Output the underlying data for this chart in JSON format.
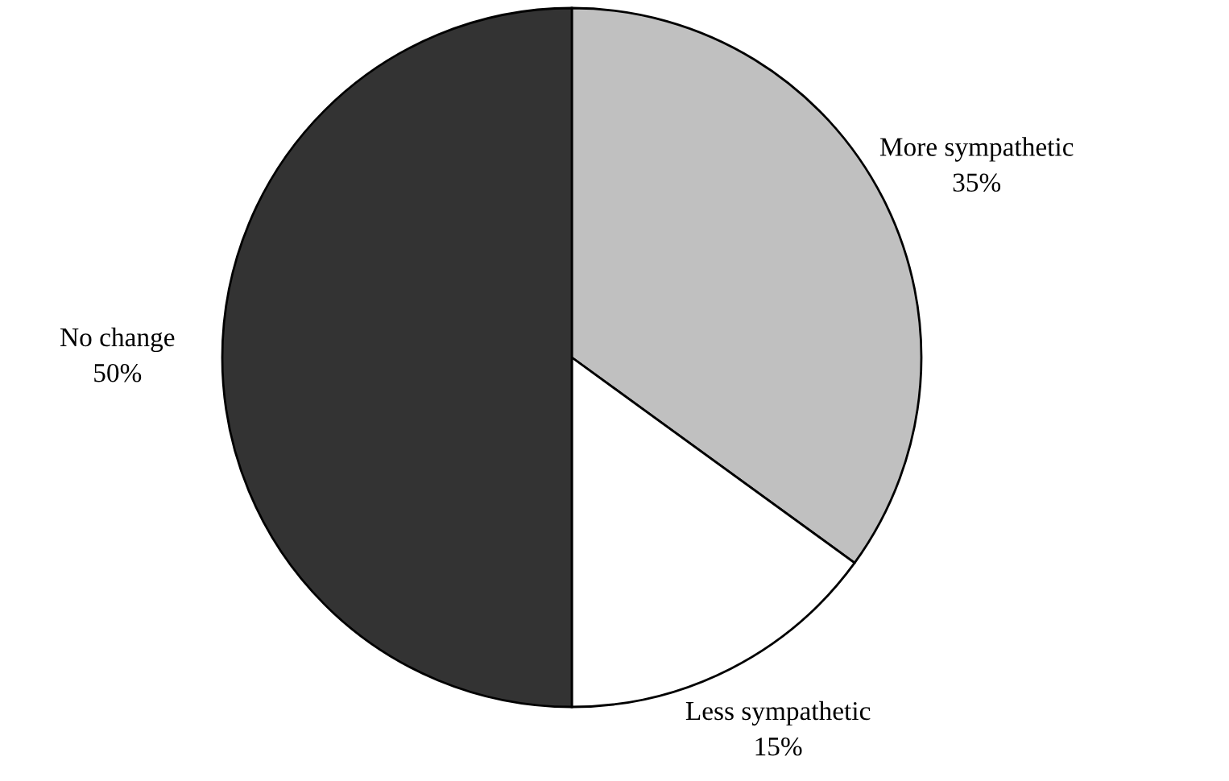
{
  "chart_data": {
    "type": "pie",
    "categories": [
      "More sympathetic",
      "Less sympathetic",
      "No change"
    ],
    "values": [
      35,
      15,
      50
    ],
    "colors": [
      "#c0c0c0",
      "#ffffff",
      "#333333"
    ],
    "value_labels": [
      "35%",
      "15%",
      "50%"
    ]
  }
}
